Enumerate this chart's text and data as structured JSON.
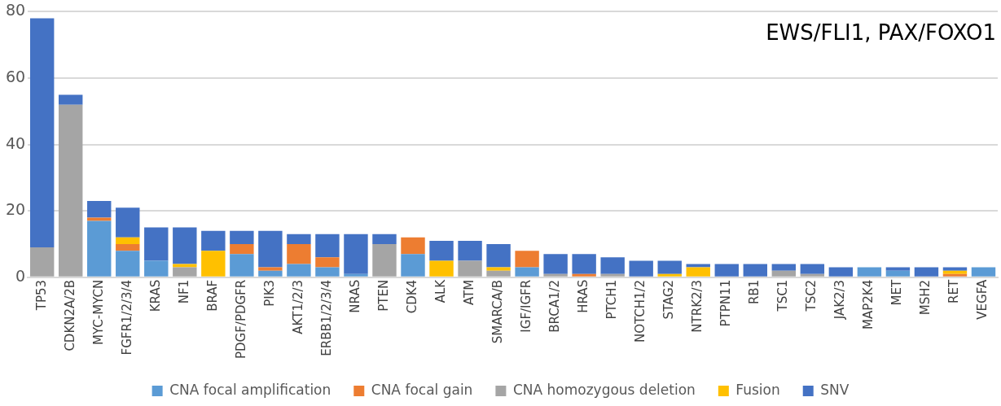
{
  "chart_data": {
    "type": "bar",
    "stacked": true,
    "categories": [
      "TP53",
      "CDKN2A/2B",
      "MYC-MYCN",
      "FGFR1/2/3/4",
      "KRAS",
      "NF1",
      "BRAF",
      "PDGF/PDGFR",
      "PIK3",
      "AKT1/2/3",
      "ERBB1/2/3/4",
      "NRAS",
      "PTEN",
      "CDK4",
      "ALK",
      "ATM",
      "SMARCA/B",
      "IGF/IGFR",
      "BRCA1/2",
      "HRAS",
      "PTCH1",
      "NOTCH1/2",
      "STAG2",
      "NTRK2/3",
      "PTPN11",
      "RB1",
      "TSC1",
      "TSC2",
      "JAK2/3",
      "MAP2K4",
      "MET",
      "MSH2",
      "RET",
      "VEGFA"
    ],
    "series": [
      {
        "name": "CNA focal amplification",
        "color": "#5b9bd5",
        "values": [
          0,
          0,
          17,
          8,
          5,
          0,
          0,
          7,
          2,
          4,
          3,
          1,
          0,
          7,
          0,
          0,
          0,
          3,
          0,
          0,
          0,
          0,
          0,
          0,
          0,
          0,
          0,
          0,
          0,
          3,
          2,
          0,
          0,
          3
        ]
      },
      {
        "name": "CNA focal gain",
        "color": "#ed7d31",
        "values": [
          0,
          0,
          1,
          2,
          0,
          0,
          0,
          3,
          1,
          6,
          3,
          0,
          0,
          5,
          0,
          0,
          0,
          5,
          0,
          1,
          0,
          0,
          0,
          0,
          0,
          0,
          0,
          0,
          0,
          0,
          0,
          0,
          1,
          0
        ]
      },
      {
        "name": "CNA homozygous deletion",
        "color": "#a5a5a5",
        "values": [
          9,
          52,
          0,
          0,
          0,
          3,
          0,
          0,
          0,
          0,
          0,
          0,
          10,
          0,
          0,
          5,
          2,
          0,
          1,
          0,
          1,
          0,
          0,
          0,
          0,
          0,
          2,
          1,
          0,
          0,
          0,
          0,
          0,
          0
        ]
      },
      {
        "name": "Fusion",
        "color": "#ffc000",
        "values": [
          0,
          0,
          0,
          2,
          0,
          1,
          8,
          0,
          0,
          0,
          0,
          0,
          0,
          0,
          5,
          0,
          1,
          0,
          0,
          0,
          0,
          0,
          1,
          3,
          0,
          0,
          0,
          0,
          0,
          0,
          0,
          0,
          1,
          0
        ]
      },
      {
        "name": "SNV",
        "color": "#4472c4",
        "values": [
          69,
          3,
          5,
          9,
          10,
          11,
          6,
          4,
          11,
          3,
          7,
          12,
          3,
          0,
          6,
          6,
          7,
          0,
          6,
          6,
          5,
          5,
          4,
          1,
          4,
          4,
          2,
          3,
          3,
          0,
          1,
          3,
          1,
          0
        ]
      }
    ],
    "ylim": [
      0,
      80
    ],
    "yticks": [
      0,
      20,
      40,
      60,
      80
    ],
    "grid": "y",
    "legend": "bottom",
    "annotations": [
      "EWS/FLI1, PAX/FOXO1"
    ]
  }
}
